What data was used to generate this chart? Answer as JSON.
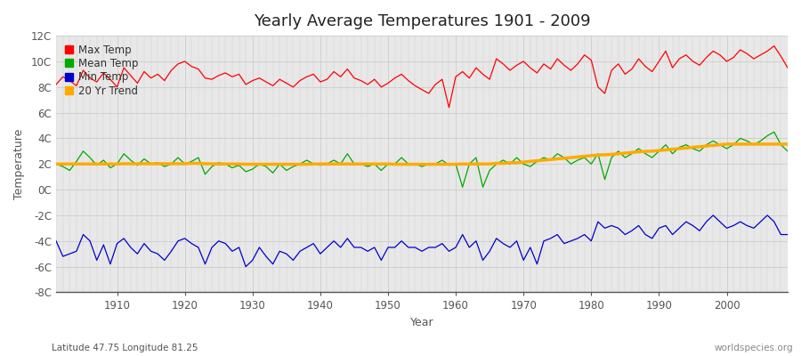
{
  "title": "Yearly Average Temperatures 1901 - 2009",
  "ylabel": "Temperature",
  "xlabel": "Year",
  "bottom_left": "Latitude 47.75 Longitude 81.25",
  "bottom_right": "worldspecies.org",
  "ylim": [
    -8,
    12
  ],
  "yticks": [
    -8,
    -6,
    -4,
    -2,
    0,
    2,
    4,
    6,
    8,
    10,
    12
  ],
  "ytick_labels": [
    "-8C",
    "-6C",
    "-4C",
    "-2C",
    "0C",
    "2C",
    "4C",
    "6C",
    "8C",
    "10C",
    "12C"
  ],
  "xlim": [
    1901,
    2009
  ],
  "xticks": [
    1910,
    1920,
    1930,
    1940,
    1950,
    1960,
    1970,
    1980,
    1990,
    2000
  ],
  "fig_color": "#ffffff",
  "plot_bg_color": "#e8e8e8",
  "grid_color": "#cccccc",
  "max_color": "#ff0000",
  "mean_color": "#00aa00",
  "min_color": "#0000cc",
  "trend_color": "#ffaa00",
  "legend_items": [
    "Max Temp",
    "Mean Temp",
    "Min Temp",
    "20 Yr Trend"
  ],
  "legend_colors": [
    "#ff0000",
    "#00aa00",
    "#0000cc",
    "#ffaa00"
  ],
  "years": [
    1901,
    1902,
    1903,
    1904,
    1905,
    1906,
    1907,
    1908,
    1909,
    1910,
    1911,
    1912,
    1913,
    1914,
    1915,
    1916,
    1917,
    1918,
    1919,
    1920,
    1921,
    1922,
    1923,
    1924,
    1925,
    1926,
    1927,
    1928,
    1929,
    1930,
    1931,
    1932,
    1933,
    1934,
    1935,
    1936,
    1937,
    1938,
    1939,
    1940,
    1941,
    1942,
    1943,
    1944,
    1945,
    1946,
    1947,
    1948,
    1949,
    1950,
    1951,
    1952,
    1953,
    1954,
    1955,
    1956,
    1957,
    1958,
    1959,
    1960,
    1961,
    1962,
    1963,
    1964,
    1965,
    1966,
    1967,
    1968,
    1969,
    1970,
    1971,
    1972,
    1973,
    1974,
    1975,
    1976,
    1977,
    1978,
    1979,
    1980,
    1981,
    1982,
    1983,
    1984,
    1985,
    1986,
    1987,
    1988,
    1989,
    1990,
    1991,
    1992,
    1993,
    1994,
    1995,
    1996,
    1997,
    1998,
    1999,
    2000,
    2001,
    2002,
    2003,
    2004,
    2005,
    2006,
    2007,
    2008,
    2009
  ],
  "max_temp": [
    8.2,
    8.8,
    8.5,
    8.1,
    9.3,
    8.7,
    8.4,
    9.1,
    8.6,
    8.0,
    9.5,
    8.9,
    8.3,
    9.2,
    8.7,
    9.0,
    8.5,
    9.3,
    9.8,
    10.0,
    9.6,
    9.4,
    8.7,
    8.6,
    8.9,
    9.1,
    8.8,
    9.0,
    8.2,
    8.5,
    8.7,
    8.4,
    8.1,
    8.6,
    8.3,
    8.0,
    8.5,
    8.8,
    9.0,
    8.4,
    8.6,
    9.2,
    8.8,
    9.4,
    8.7,
    8.5,
    8.2,
    8.6,
    8.0,
    8.3,
    8.7,
    9.0,
    8.5,
    8.1,
    7.8,
    7.5,
    8.2,
    8.6,
    6.4,
    8.8,
    9.2,
    8.7,
    9.5,
    9.0,
    8.6,
    10.2,
    9.8,
    9.3,
    9.7,
    10.0,
    9.5,
    9.1,
    9.8,
    9.4,
    10.2,
    9.7,
    9.3,
    9.8,
    10.5,
    10.1,
    8.0,
    7.5,
    9.3,
    9.8,
    9.0,
    9.4,
    10.2,
    9.6,
    9.2,
    10.0,
    10.8,
    9.5,
    10.2,
    10.5,
    10.0,
    9.7,
    10.3,
    10.8,
    10.5,
    10.0,
    10.3,
    10.9,
    10.6,
    10.2,
    10.5,
    10.8,
    11.2,
    10.4,
    9.5
  ],
  "mean_temp": [
    2.0,
    1.8,
    1.5,
    2.2,
    3.0,
    2.5,
    1.9,
    2.3,
    1.7,
    2.0,
    2.8,
    2.3,
    1.9,
    2.4,
    2.0,
    2.1,
    1.8,
    2.0,
    2.5,
    2.0,
    2.2,
    2.5,
    1.2,
    1.8,
    2.1,
    2.0,
    1.7,
    1.9,
    1.4,
    1.6,
    2.0,
    1.8,
    1.3,
    2.0,
    1.5,
    1.8,
    2.0,
    2.3,
    2.0,
    1.9,
    2.0,
    2.3,
    2.0,
    2.8,
    2.0,
    2.0,
    1.8,
    2.0,
    1.5,
    2.0,
    2.0,
    2.5,
    2.0,
    2.0,
    1.8,
    2.0,
    2.0,
    2.3,
    1.9,
    2.0,
    0.2,
    2.0,
    2.5,
    0.2,
    1.5,
    2.0,
    2.3,
    2.0,
    2.5,
    2.0,
    1.8,
    2.2,
    2.5,
    2.3,
    2.8,
    2.5,
    2.0,
    2.3,
    2.5,
    2.0,
    2.8,
    0.8,
    2.5,
    3.0,
    2.5,
    2.8,
    3.2,
    2.8,
    2.5,
    3.0,
    3.5,
    2.8,
    3.3,
    3.5,
    3.2,
    3.0,
    3.5,
    3.8,
    3.5,
    3.2,
    3.5,
    4.0,
    3.8,
    3.5,
    3.8,
    4.2,
    4.5,
    3.5,
    3.0
  ],
  "min_temp": [
    -4.0,
    -5.2,
    -5.0,
    -4.8,
    -3.5,
    -4.0,
    -5.5,
    -4.3,
    -5.8,
    -4.2,
    -3.8,
    -4.5,
    -5.0,
    -4.2,
    -4.8,
    -5.0,
    -5.5,
    -4.8,
    -4.0,
    -3.8,
    -4.2,
    -4.5,
    -5.8,
    -4.5,
    -4.0,
    -4.2,
    -4.8,
    -4.5,
    -6.0,
    -5.5,
    -4.5,
    -5.2,
    -5.8,
    -4.8,
    -5.0,
    -5.5,
    -4.8,
    -4.5,
    -4.2,
    -5.0,
    -4.5,
    -4.0,
    -4.5,
    -3.8,
    -4.5,
    -4.5,
    -4.8,
    -4.5,
    -5.5,
    -4.5,
    -4.5,
    -4.0,
    -4.5,
    -4.5,
    -4.8,
    -4.5,
    -4.5,
    -4.2,
    -4.8,
    -4.5,
    -3.5,
    -4.5,
    -4.0,
    -5.5,
    -4.8,
    -3.8,
    -4.2,
    -4.5,
    -4.0,
    -5.5,
    -4.5,
    -5.8,
    -4.0,
    -3.8,
    -3.5,
    -4.2,
    -4.0,
    -3.8,
    -3.5,
    -4.0,
    -2.5,
    -3.0,
    -2.8,
    -3.0,
    -3.5,
    -3.2,
    -2.8,
    -3.5,
    -3.8,
    -3.0,
    -2.8,
    -3.5,
    -3.0,
    -2.5,
    -2.8,
    -3.2,
    -2.5,
    -2.0,
    -2.5,
    -3.0,
    -2.8,
    -2.5,
    -2.8,
    -3.0,
    -2.5,
    -2.0,
    -2.5,
    -3.5,
    -3.5
  ],
  "trend": [
    2.0,
    2.0,
    2.0,
    2.0,
    2.0,
    2.0,
    2.0,
    2.0,
    2.0,
    2.0,
    2.02,
    2.02,
    2.02,
    2.02,
    2.02,
    2.02,
    2.02,
    2.02,
    2.02,
    2.02,
    2.05,
    2.05,
    2.02,
    2.02,
    2.0,
    2.0,
    2.0,
    2.0,
    1.98,
    1.98,
    1.98,
    1.98,
    1.98,
    1.98,
    1.98,
    1.98,
    1.98,
    1.98,
    2.0,
    2.0,
    2.0,
    2.0,
    2.0,
    2.0,
    2.0,
    2.0,
    2.0,
    2.0,
    2.0,
    2.0,
    1.98,
    1.98,
    1.98,
    1.98,
    1.98,
    1.98,
    1.98,
    1.98,
    1.98,
    1.98,
    2.0,
    2.0,
    2.0,
    2.0,
    2.0,
    2.05,
    2.05,
    2.1,
    2.1,
    2.15,
    2.2,
    2.25,
    2.3,
    2.35,
    2.4,
    2.45,
    2.5,
    2.55,
    2.6,
    2.65,
    2.7,
    2.72,
    2.75,
    2.8,
    2.85,
    2.9,
    2.95,
    2.98,
    3.0,
    3.05,
    3.1,
    3.15,
    3.2,
    3.25,
    3.3,
    3.35,
    3.4,
    3.45,
    3.5,
    3.55,
    3.55,
    3.55,
    3.55,
    3.55,
    3.55,
    3.55,
    3.55,
    3.55,
    3.55
  ]
}
